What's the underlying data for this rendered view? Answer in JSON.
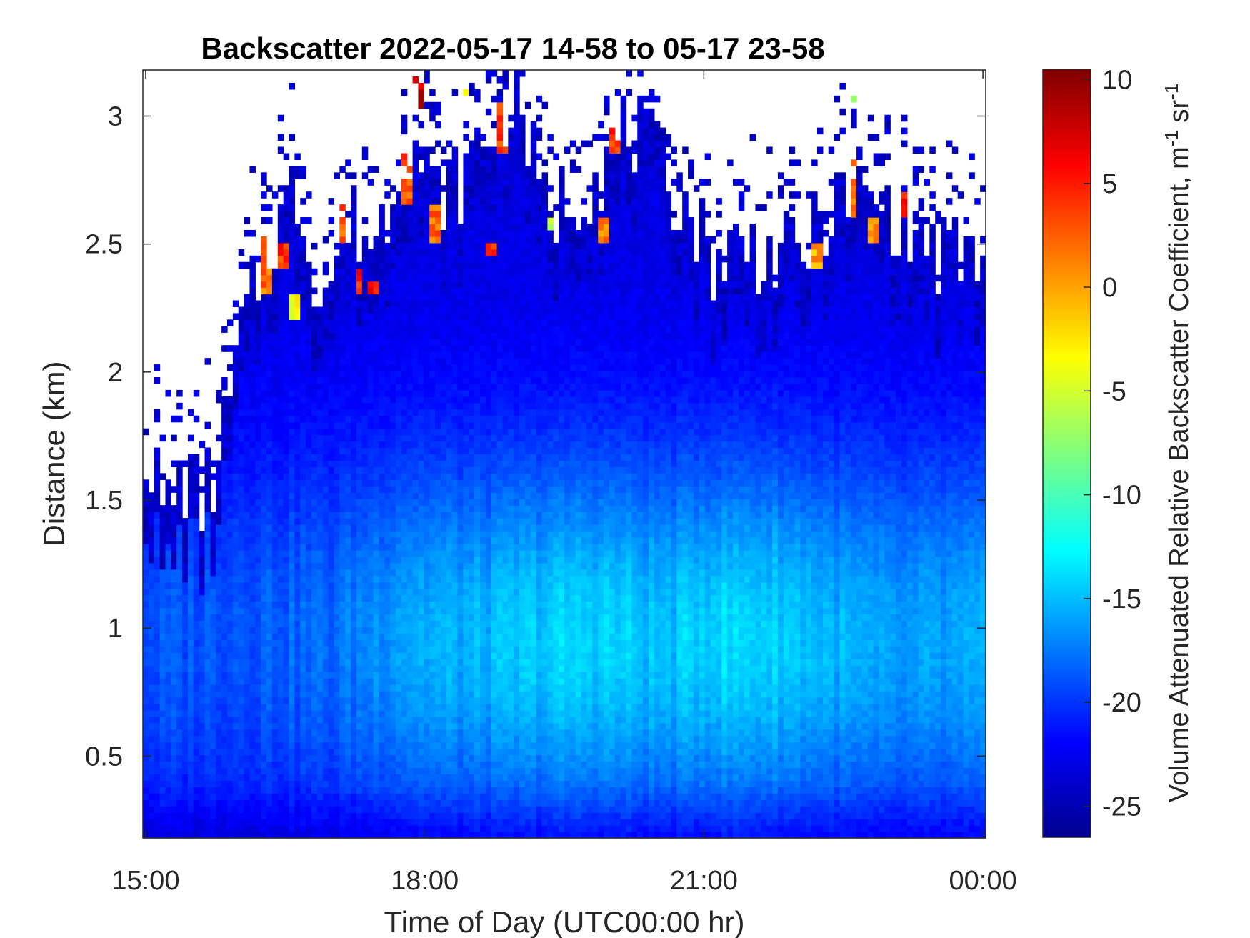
{
  "chart_data": {
    "type": "heatmap",
    "title": "Backscatter 2022-05-17 14-58 to 05-17 23-58",
    "xlabel": "Time of Day (UTC00:00 hr)",
    "ylabel": "Distance (km)",
    "x_ticks": [
      {
        "label": "15:00",
        "hours": 15
      },
      {
        "label": "18:00",
        "hours": 18
      },
      {
        "label": "21:00",
        "hours": 21
      },
      {
        "label": "00:00",
        "hours": 24
      }
    ],
    "y_ticks": [
      0.5,
      1,
      1.5,
      2,
      2.5,
      3
    ],
    "y_tick_labels": [
      "0.5",
      "1",
      "1.5",
      "2",
      "2.5",
      "3"
    ],
    "xlim_hours": [
      14.97,
      24.03
    ],
    "ylim_km": [
      0.18,
      3.18
    ],
    "colorbar": {
      "colormap": "jet",
      "range": [
        -26.5,
        10.5
      ],
      "ticks": [
        10,
        5,
        0,
        -5,
        -10,
        -15,
        -20,
        -25
      ],
      "tick_labels": [
        "10",
        "5",
        "0",
        "-5",
        "-10",
        "-15",
        "-20",
        "-25"
      ],
      "label_main": "Volume Attenuated Relative Backscatter Coefficient, m",
      "label_sup1": "-1",
      "label_mid": " sr",
      "label_sup2": "-1"
    },
    "grid": false,
    "model": {
      "time_bins": 150,
      "range_bins": 120,
      "cloud_top_km": [
        [
          14.98,
          1.75
        ],
        [
          15.2,
          1.45
        ],
        [
          15.4,
          1.6
        ],
        [
          15.6,
          1.5
        ],
        [
          15.8,
          1.65
        ],
        [
          16.0,
          2.1
        ],
        [
          16.3,
          2.5
        ],
        [
          16.6,
          2.7
        ],
        [
          16.9,
          2.3
        ],
        [
          17.2,
          2.6
        ],
        [
          17.5,
          2.5
        ],
        [
          17.8,
          2.95
        ],
        [
          18.1,
          2.7
        ],
        [
          18.4,
          2.75
        ],
        [
          18.7,
          2.95
        ],
        [
          19.0,
          3.1
        ],
        [
          19.3,
          2.6
        ],
        [
          19.6,
          2.7
        ],
        [
          19.9,
          2.8
        ],
        [
          20.2,
          2.95
        ],
        [
          20.5,
          2.8
        ],
        [
          20.8,
          2.65
        ],
        [
          21.1,
          2.45
        ],
        [
          21.4,
          2.5
        ],
        [
          21.7,
          2.45
        ],
        [
          22.0,
          2.45
        ],
        [
          22.3,
          2.6
        ],
        [
          22.6,
          2.7
        ],
        [
          22.9,
          2.65
        ],
        [
          23.2,
          2.55
        ],
        [
          23.5,
          2.45
        ],
        [
          23.8,
          2.45
        ],
        [
          24.0,
          2.45
        ]
      ],
      "aerosol_layer_peak_km": 0.95,
      "aerosol_peak_values": [
        [
          15.0,
          -19
        ],
        [
          16.0,
          -18.5
        ],
        [
          17.0,
          -18
        ],
        [
          17.8,
          -15.5
        ],
        [
          18.5,
          -15.5
        ],
        [
          19.2,
          -14.5
        ],
        [
          19.8,
          -14
        ],
        [
          20.6,
          -15
        ],
        [
          21.0,
          -14
        ],
        [
          21.6,
          -14
        ],
        [
          22.0,
          -14.5
        ],
        [
          23.0,
          -16.5
        ],
        [
          24.0,
          -16
        ]
      ],
      "cloud_features": [
        {
          "hours": 16.3,
          "top_km": 2.55,
          "bottom_km": 2.3,
          "peak": 2
        },
        {
          "hours": 16.5,
          "top_km": 2.5,
          "bottom_km": 2.4,
          "peak": 4
        },
        {
          "hours": 16.6,
          "top_km": 2.3,
          "bottom_km": 2.2,
          "peak": -3
        },
        {
          "hours": 17.1,
          "top_km": 2.7,
          "bottom_km": 2.5,
          "peak": 3
        },
        {
          "hours": 17.3,
          "top_km": 2.4,
          "bottom_km": 2.3,
          "peak": 5
        },
        {
          "hours": 17.45,
          "top_km": 2.35,
          "bottom_km": 2.3,
          "peak": 6
        },
        {
          "hours": 17.8,
          "top_km": 2.9,
          "bottom_km": 2.65,
          "peak": 3
        },
        {
          "hours": 17.95,
          "top_km": 3.18,
          "bottom_km": 3.0,
          "peak": 8
        },
        {
          "hours": 18.1,
          "top_km": 2.65,
          "bottom_km": 2.5,
          "peak": 2
        },
        {
          "hours": 18.4,
          "top_km": 3.18,
          "bottom_km": 3.05,
          "peak": -2
        },
        {
          "hours": 18.7,
          "top_km": 2.5,
          "bottom_km": 2.45,
          "peak": 4
        },
        {
          "hours": 18.85,
          "top_km": 3.05,
          "bottom_km": 2.85,
          "peak": 4
        },
        {
          "hours": 19.4,
          "top_km": 2.6,
          "bottom_km": 2.55,
          "peak": -6
        },
        {
          "hours": 19.9,
          "top_km": 2.6,
          "bottom_km": 2.5,
          "peak": 1
        },
        {
          "hours": 20.05,
          "top_km": 3.0,
          "bottom_km": 2.85,
          "peak": 4
        },
        {
          "hours": 22.2,
          "top_km": 2.5,
          "bottom_km": 2.4,
          "peak": 0
        },
        {
          "hours": 22.6,
          "top_km": 2.85,
          "bottom_km": 2.6,
          "peak": 2
        },
        {
          "hours": 22.65,
          "top_km": 3.18,
          "bottom_km": 3.05,
          "peak": -9
        },
        {
          "hours": 22.8,
          "top_km": 2.6,
          "bottom_km": 2.5,
          "peak": 1
        },
        {
          "hours": 23.2,
          "top_km": 2.7,
          "bottom_km": 2.6,
          "peak": 5
        }
      ]
    }
  }
}
